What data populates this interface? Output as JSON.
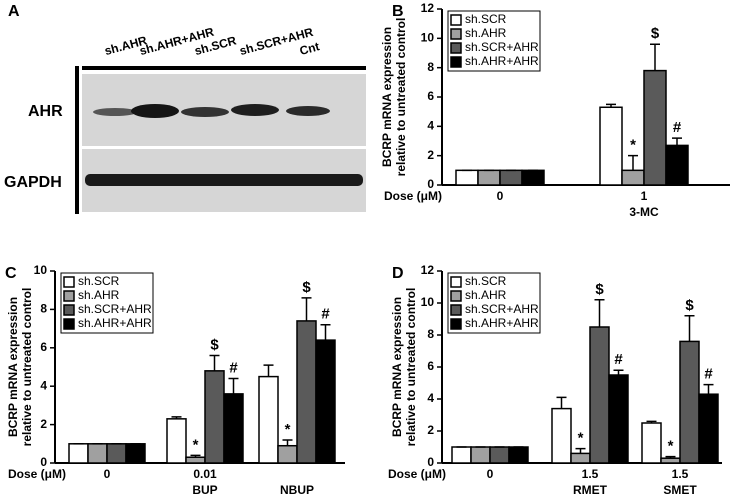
{
  "blot": {
    "panel": "A",
    "lanes": [
      "sh.AHR",
      "sh.AHR+AHR",
      "sh.SCR",
      "sh.SCR+AHR",
      "Cnt"
    ],
    "rows": [
      "AHR",
      "GAPDH"
    ]
  },
  "chart_data": [
    {
      "type": "bar",
      "panel": "B",
      "ylabel": [
        "BCRP mRNA expression",
        "relative to untreated control"
      ],
      "xlabel": "Dose (μM)",
      "categories": [
        "0",
        "1"
      ],
      "agents": [
        null,
        "3-MC"
      ],
      "ylim": [
        0,
        12
      ],
      "yticks": [
        0,
        2,
        4,
        6,
        8,
        10,
        12
      ],
      "legend": "top-left",
      "series": [
        {
          "name": "sh.SCR",
          "color": "#ffffff",
          "values": [
            1,
            5.3
          ],
          "errors": [
            0,
            0.2
          ],
          "annotations": [
            null,
            null
          ]
        },
        {
          "name": "sh.AHR",
          "color": "#a0a0a0",
          "values": [
            1,
            1.0
          ],
          "errors": [
            0,
            1.0
          ],
          "annotations": [
            null,
            "*"
          ]
        },
        {
          "name": "sh.SCR+AHR",
          "color": "#5a5a5a",
          "values": [
            1,
            7.8
          ],
          "errors": [
            0,
            1.8
          ],
          "annotations": [
            null,
            "$"
          ]
        },
        {
          "name": "sh.AHR+AHR",
          "color": "#000000",
          "values": [
            1,
            2.7
          ],
          "errors": [
            0,
            0.5
          ],
          "annotations": [
            null,
            "#"
          ]
        }
      ]
    },
    {
      "type": "bar",
      "panel": "C",
      "ylabel": [
        "BCRP mRNA expression",
        "relative to untreated control"
      ],
      "xlabel": "Dose (μM)",
      "categories": [
        "0",
        "0.01",
        null
      ],
      "agents": [
        null,
        "BUP",
        "NBUP"
      ],
      "ylim": [
        0,
        10
      ],
      "yticks": [
        0,
        2,
        4,
        6,
        8,
        10
      ],
      "legend": "top-left",
      "series": [
        {
          "name": "sh.SCR",
          "color": "#ffffff",
          "values": [
            1,
            2.3,
            4.5
          ],
          "errors": [
            0,
            0.1,
            0.6
          ],
          "annotations": [
            null,
            null,
            null
          ]
        },
        {
          "name": "sh.AHR",
          "color": "#a0a0a0",
          "values": [
            1,
            0.3,
            0.9
          ],
          "errors": [
            0,
            0.1,
            0.3
          ],
          "annotations": [
            null,
            "*",
            "*"
          ]
        },
        {
          "name": "sh.SCR+AHR",
          "color": "#5a5a5a",
          "values": [
            1,
            4.8,
            7.4
          ],
          "errors": [
            0,
            0.8,
            1.2
          ],
          "annotations": [
            null,
            "$",
            "$"
          ]
        },
        {
          "name": "sh.AHR+AHR",
          "color": "#000000",
          "values": [
            1,
            3.6,
            6.4
          ],
          "errors": [
            0,
            0.8,
            0.8
          ],
          "annotations": [
            null,
            "#",
            "#"
          ]
        }
      ]
    },
    {
      "type": "bar",
      "panel": "D",
      "ylabel": [
        "BCRP mRNA expression",
        "relative to untreated control"
      ],
      "xlabel": "Dose (μM)",
      "categories": [
        "0",
        "1.5",
        "1.5"
      ],
      "agents": [
        null,
        "RMET",
        "SMET"
      ],
      "ylim": [
        0,
        12
      ],
      "yticks": [
        0,
        2,
        4,
        6,
        8,
        10,
        12
      ],
      "legend": "top-left",
      "series": [
        {
          "name": "sh.SCR",
          "color": "#ffffff",
          "values": [
            1,
            3.4,
            2.5
          ],
          "errors": [
            0,
            0.7,
            0.1
          ],
          "annotations": [
            null,
            null,
            null
          ]
        },
        {
          "name": "sh.AHR",
          "color": "#a0a0a0",
          "values": [
            1,
            0.6,
            0.3
          ],
          "errors": [
            0,
            0.3,
            0.1
          ],
          "annotations": [
            null,
            "*",
            "*"
          ]
        },
        {
          "name": "sh.SCR+AHR",
          "color": "#5a5a5a",
          "values": [
            1,
            8.5,
            7.6
          ],
          "errors": [
            0,
            1.7,
            1.6
          ],
          "annotations": [
            null,
            "$",
            "$"
          ]
        },
        {
          "name": "sh.AHR+AHR",
          "color": "#000000",
          "values": [
            1,
            5.5,
            4.3
          ],
          "errors": [
            0,
            0.3,
            0.6
          ],
          "annotations": [
            null,
            "#",
            "#"
          ]
        }
      ]
    }
  ]
}
